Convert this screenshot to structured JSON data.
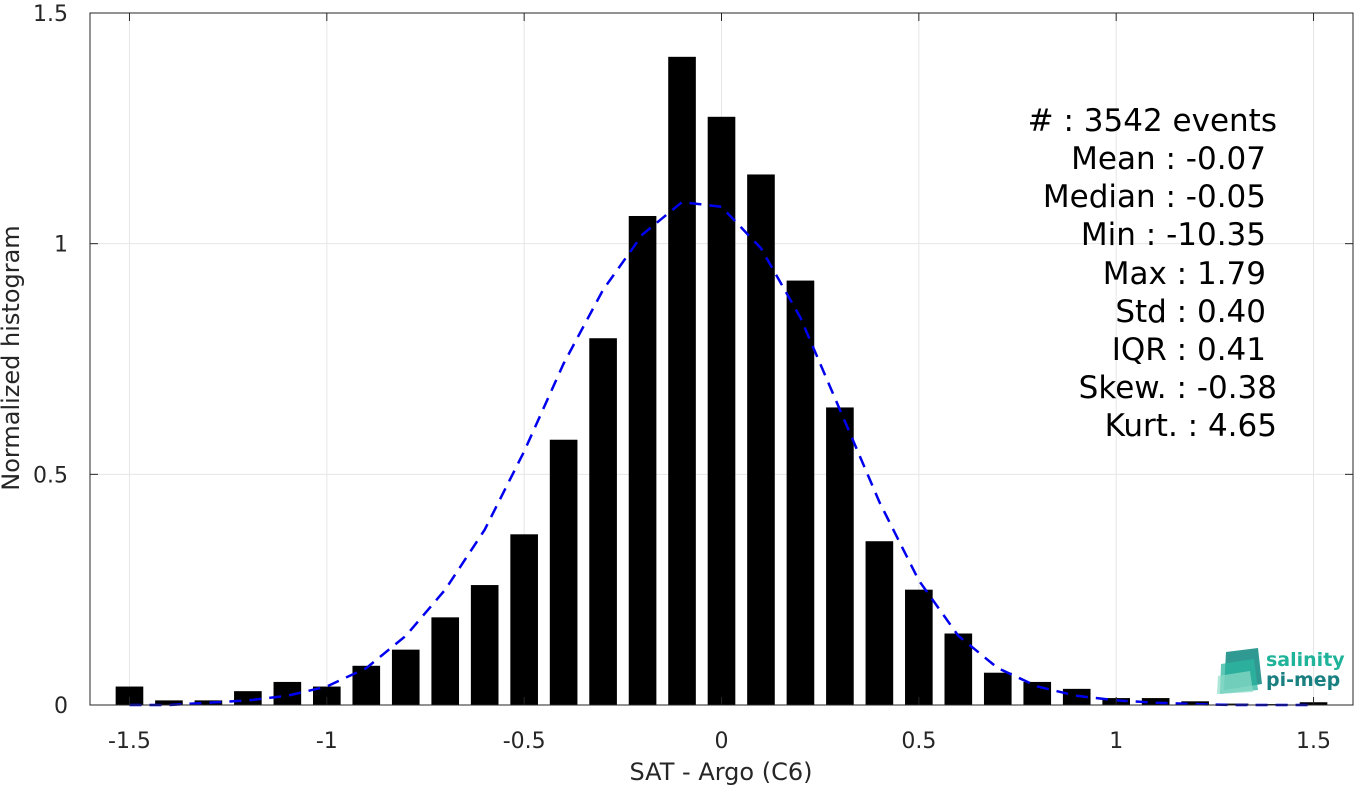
{
  "chart_data": {
    "type": "bar",
    "xlabel": "SAT - Argo (C6)",
    "ylabel": "Normalized histogram",
    "xlim": [
      -1.6,
      1.6
    ],
    "ylim": [
      0,
      1.5
    ],
    "xticks": [
      -1.5,
      -1,
      -0.5,
      0,
      0.5,
      1,
      1.5
    ],
    "xtick_labels": [
      "-1.5",
      "-1",
      "-0.5",
      "0",
      "0.5",
      "1",
      "1.5"
    ],
    "yticks": [
      0,
      0.5,
      1,
      1.5
    ],
    "ytick_labels": [
      "0",
      "0.5",
      "1",
      "1.5"
    ],
    "grid": true,
    "bar_color": "#000000",
    "bar_width": 0.07,
    "series": [
      {
        "type": "bar",
        "x": [
          -1.5,
          -1.4,
          -1.3,
          -1.2,
          -1.1,
          -1.0,
          -0.9,
          -0.8,
          -0.7,
          -0.6,
          -0.5,
          -0.4,
          -0.3,
          -0.2,
          -0.1,
          0.0,
          0.1,
          0.2,
          0.3,
          0.4,
          0.5,
          0.6,
          0.7,
          0.8,
          0.9,
          1.0,
          1.1,
          1.2,
          1.3,
          1.4,
          1.5
        ],
        "values": [
          0.04,
          0.01,
          0.01,
          0.03,
          0.05,
          0.04,
          0.085,
          0.12,
          0.19,
          0.26,
          0.37,
          0.575,
          0.795,
          1.06,
          1.405,
          1.275,
          1.15,
          0.92,
          0.645,
          0.355,
          0.25,
          0.155,
          0.07,
          0.05,
          0.035,
          0.015,
          0.015,
          0.008,
          0.003,
          0.002,
          0.006
        ]
      },
      {
        "type": "line",
        "style": "dashed",
        "color": "#0000ee",
        "x": [
          -1.5,
          -1.4,
          -1.3,
          -1.2,
          -1.1,
          -1.0,
          -0.9,
          -0.8,
          -0.7,
          -0.6,
          -0.5,
          -0.4,
          -0.3,
          -0.2,
          -0.1,
          0.0,
          0.1,
          0.2,
          0.3,
          0.4,
          0.5,
          0.6,
          0.7,
          0.8,
          0.9,
          1.0,
          1.1,
          1.2,
          1.3,
          1.4,
          1.5
        ],
        "values": [
          0.0,
          0.0,
          0.005,
          0.01,
          0.02,
          0.04,
          0.08,
          0.15,
          0.25,
          0.38,
          0.55,
          0.74,
          0.9,
          1.02,
          1.09,
          1.08,
          0.99,
          0.84,
          0.64,
          0.44,
          0.27,
          0.15,
          0.08,
          0.04,
          0.02,
          0.01,
          0.005,
          0.002,
          0.0,
          0.0,
          0.0
        ]
      }
    ]
  },
  "stats": [
    {
      "label": "#  : 3542 events"
    },
    {
      "label": "Mean : -0.07"
    },
    {
      "label": "Median : -0.05"
    },
    {
      "label": "Min : -10.35"
    },
    {
      "label": "Max : 1.79"
    },
    {
      "label": "Std : 0.40"
    },
    {
      "label": "IQR : 0.41"
    },
    {
      "label": "Skew. : -0.38"
    },
    {
      "label": "Kurt. : 4.65"
    }
  ],
  "logo": {
    "line1": "salinity",
    "line2": "pi-mep",
    "color1": "#1fb39a",
    "color2": "#1a7f80"
  }
}
